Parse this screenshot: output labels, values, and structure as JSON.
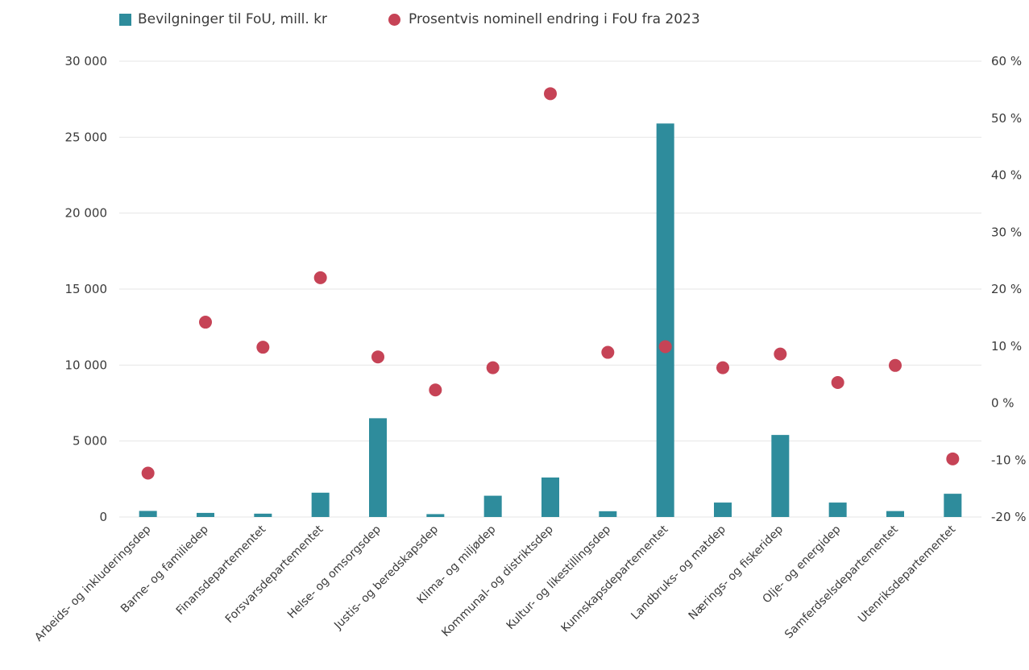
{
  "legend": {
    "bar_label": "Bevilgninger til FoU, mill. kr",
    "dot_label": "Prosentvis nominell endring i FoU fra 2023"
  },
  "colors": {
    "bar": "#2e8c9c",
    "dot": "#c64356",
    "grid": "#e6e6e6"
  },
  "chart_data": {
    "type": "bar",
    "title": "",
    "categories": [
      "Arbeids- og inkluderingsdep",
      "Barne- og familiedep",
      "Finansdepartementet",
      "Forsvarsdepartementet",
      "Helse- og omsorgsdep",
      "Justis- og beredskapsdep",
      "Klima- og miljødep",
      "Kommunal- og distriktsdep",
      "Kultur- og likestillingsdep",
      "Kunnskapsdepartementet",
      "Landbruks- og matdep",
      "Nærings- og fiskeridep",
      "Olje- og energidep",
      "Samferdselsdepartementet",
      "Utenriksdepartementet"
    ],
    "series": [
      {
        "name": "Bevilgninger til FoU, mill. kr",
        "type": "bar",
        "axis": "left",
        "values": [
          400,
          270,
          220,
          1600,
          6500,
          190,
          1400,
          2600,
          380,
          25900,
          950,
          5400,
          950,
          390,
          1530
        ]
      },
      {
        "name": "Prosentvis nominell endring i FoU fra 2023",
        "type": "scatter",
        "axis": "right",
        "values": [
          -12.3,
          14.2,
          9.8,
          22.0,
          8.1,
          2.3,
          6.2,
          54.3,
          8.9,
          9.9,
          6.2,
          8.6,
          3.6,
          6.6,
          -9.8
        ]
      }
    ],
    "y_left": {
      "ylim": [
        0,
        30000
      ],
      "ticks": [
        0,
        5000,
        10000,
        15000,
        20000,
        25000,
        30000
      ],
      "tick_labels": [
        "0",
        "5 000",
        "10 000",
        "15 000",
        "20 000",
        "25 000",
        "30 000"
      ]
    },
    "y_right": {
      "ylim": [
        -20,
        60
      ],
      "ticks": [
        -20,
        -10,
        0,
        10,
        20,
        30,
        40,
        50,
        60
      ],
      "tick_labels": [
        "-20 %",
        "-10 %",
        "0 %",
        "10 %",
        "20 %",
        "30 %",
        "40 %",
        "50 %",
        "60 %"
      ]
    },
    "grid": true,
    "legend_position": "top-left"
  }
}
